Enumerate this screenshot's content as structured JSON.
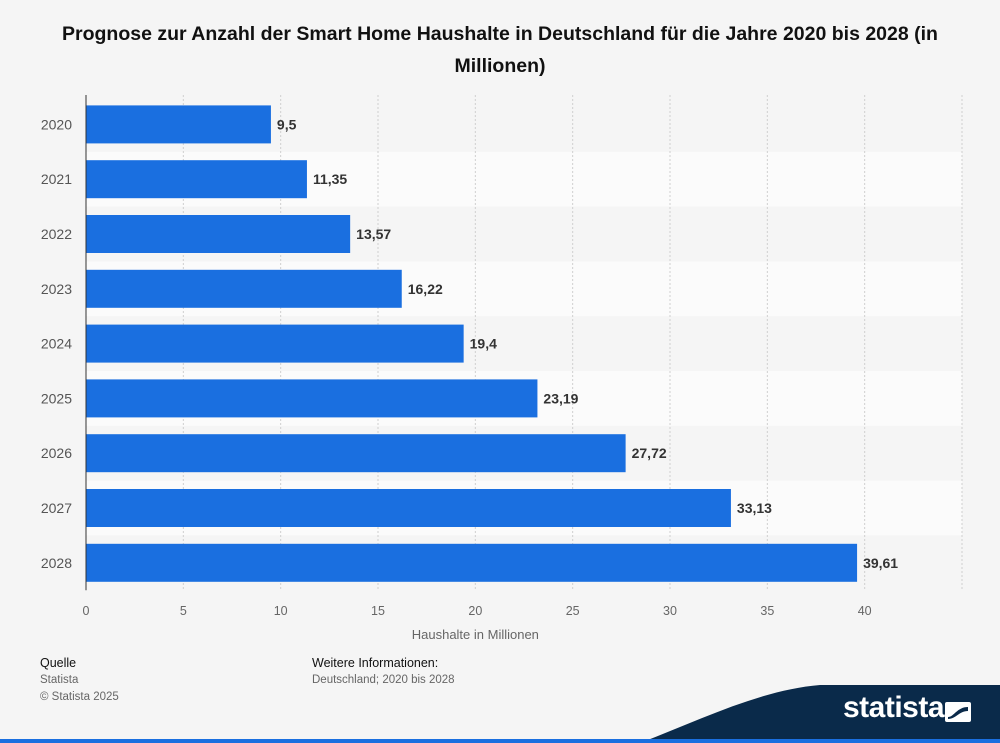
{
  "title": "Prognose zur Anzahl der Smart Home Haushalte in Deutschland für die Jahre 2020 bis 2028 (in Millionen)",
  "chart_data": {
    "type": "bar",
    "orientation": "horizontal",
    "categories": [
      "2020",
      "2021",
      "2022",
      "2023",
      "2024",
      "2025",
      "2026",
      "2027",
      "2028"
    ],
    "values": [
      9.5,
      11.35,
      13.57,
      16.22,
      19.4,
      23.19,
      27.72,
      33.13,
      39.61
    ],
    "value_labels": [
      "9,5",
      "11,35",
      "13,57",
      "16,22",
      "19,4",
      "23,19",
      "27,72",
      "33,13",
      "39,61"
    ],
    "xlabel": "Haushalte in Millionen",
    "ylabel": "",
    "xlim": [
      0,
      45
    ],
    "xticks": [
      0,
      5,
      10,
      15,
      20,
      25,
      30,
      35,
      40
    ],
    "grid": true,
    "bar_color": "#1a6fe0"
  },
  "footer": {
    "source_heading": "Quelle",
    "source_name": "Statista",
    "copyright": "© Statista 2025",
    "info_heading": "Weitere Informationen:",
    "info_text": "Deutschland; 2020 bis 2028"
  },
  "brand": {
    "name": "statista",
    "color": "#0a2a4a"
  }
}
